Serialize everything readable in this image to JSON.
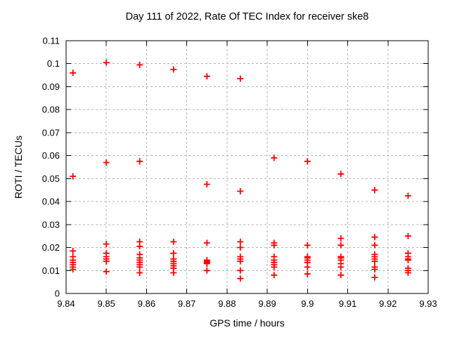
{
  "chart_data": {
    "type": "scatter",
    "title": "Day 111 of 2022, Rate Of TEC Index for receiver ske8",
    "xlabel": "GPS time / hours",
    "ylabel": "ROTI / TECUs",
    "xlim": [
      9.84,
      9.93
    ],
    "ylim": [
      0,
      0.11
    ],
    "x_ticks": [
      "9.84",
      "9.85",
      "9.86",
      "9.87",
      "9.88",
      "9.89",
      "9.9",
      "9.91",
      "9.92",
      "9.93"
    ],
    "y_ticks": [
      "0",
      "0.01",
      "0.02",
      "0.03",
      "0.04",
      "0.05",
      "0.06",
      "0.07",
      "0.08",
      "0.09",
      "0.1",
      "0.11"
    ],
    "grid": true,
    "legend": "none",
    "background_color": "#ffffff",
    "border_color": "#000000",
    "grid_color": "#b5b5b5",
    "marker": {
      "shape": "plus",
      "color": "#ff0000",
      "size": 9
    },
    "series_name": "ROTI",
    "clusters": [
      {
        "t": 9.8417,
        "roti": [
          0.096,
          0.051,
          0.0185,
          0.016,
          0.0145,
          0.0135,
          0.0125,
          0.0115,
          0.0105
        ]
      },
      {
        "t": 9.85,
        "roti": [
          0.1005,
          0.057,
          0.0215,
          0.0175,
          0.016,
          0.015,
          0.014,
          0.0095
        ]
      },
      {
        "t": 9.8583,
        "roti": [
          0.0995,
          0.0575,
          0.0225,
          0.0205,
          0.017,
          0.0155,
          0.0145,
          0.0135,
          0.0125,
          0.0115,
          0.009
        ]
      },
      {
        "t": 9.8667,
        "roti": [
          0.0975,
          0.0225,
          0.0175,
          0.015,
          0.014,
          0.013,
          0.012,
          0.011,
          0.009
        ]
      },
      {
        "t": 9.875,
        "roti": [
          0.0945,
          0.0475,
          0.022,
          0.0145,
          0.014,
          0.0135,
          0.013,
          0.01
        ]
      },
      {
        "t": 9.8833,
        "roti": [
          0.0935,
          0.0445,
          0.0225,
          0.02,
          0.016,
          0.015,
          0.014,
          0.01,
          0.0065
        ]
      },
      {
        "t": 9.8917,
        "roti": [
          0.059,
          0.022,
          0.021,
          0.016,
          0.0145,
          0.0135,
          0.0125,
          0.0115,
          0.008
        ]
      },
      {
        "t": 9.9,
        "roti": [
          0.0575,
          0.021,
          0.016,
          0.0155,
          0.0145,
          0.0135,
          0.0115,
          0.0085
        ]
      },
      {
        "t": 9.9083,
        "roti": [
          0.052,
          0.024,
          0.021,
          0.016,
          0.0155,
          0.0145,
          0.013,
          0.0115,
          0.008
        ]
      },
      {
        "t": 9.9167,
        "roti": [
          0.045,
          0.0245,
          0.021,
          0.017,
          0.016,
          0.015,
          0.014,
          0.0115,
          0.0105,
          0.007
        ]
      },
      {
        "t": 9.925,
        "roti": [
          0.0425,
          0.025,
          0.0175,
          0.016,
          0.015,
          0.0145,
          0.011,
          0.01,
          0.009
        ]
      }
    ]
  }
}
